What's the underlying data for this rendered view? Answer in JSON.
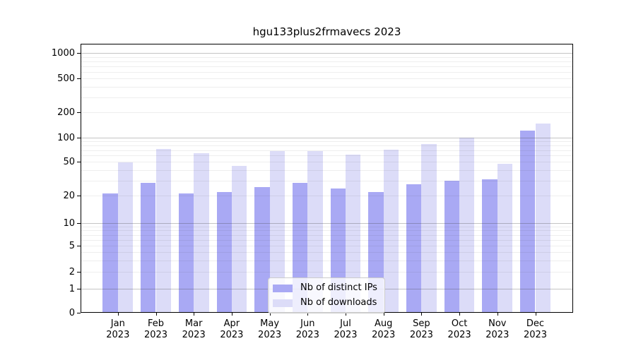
{
  "chart_data": {
    "type": "bar",
    "title": "hgu133plus2frmavecs 2023",
    "categories": [
      {
        "month": "Jan",
        "year": "2023"
      },
      {
        "month": "Feb",
        "year": "2023"
      },
      {
        "month": "Mar",
        "year": "2023"
      },
      {
        "month": "Apr",
        "year": "2023"
      },
      {
        "month": "May",
        "year": "2023"
      },
      {
        "month": "Jun",
        "year": "2023"
      },
      {
        "month": "Jul",
        "year": "2023"
      },
      {
        "month": "Aug",
        "year": "2023"
      },
      {
        "month": "Sep",
        "year": "2023"
      },
      {
        "month": "Oct",
        "year": "2023"
      },
      {
        "month": "Nov",
        "year": "2023"
      },
      {
        "month": "Dec",
        "year": "2023"
      }
    ],
    "series": [
      {
        "name": "Nb of distinct IPs",
        "color": "#a9a9f4",
        "values": [
          21,
          28,
          21,
          22,
          25,
          28,
          24,
          22,
          27,
          30,
          31,
          121
        ]
      },
      {
        "name": "Nb of downloads",
        "color": "#dcdcf8",
        "values": [
          49,
          72,
          64,
          45,
          68,
          68,
          61,
          71,
          84,
          101,
          47,
          147
        ]
      }
    ],
    "yscale": "log-like with 0 baseline",
    "yticks": [
      0,
      1,
      2,
      5,
      10,
      20,
      50,
      100,
      200,
      500,
      1000
    ],
    "ylim": [
      0,
      1000
    ],
    "xlabel": "",
    "ylabel": "",
    "grid": "horizontal major+minor",
    "legend_position": "lower center",
    "background": "#ffffff"
  },
  "colors": {
    "bar_distinct_ips": "#a9a9f4",
    "bar_downloads": "#dcdcf8",
    "grid_major": "#c7c7c7",
    "grid_minor": "#ececec",
    "axis": "#000000",
    "legend_border": "#cccccc"
  }
}
